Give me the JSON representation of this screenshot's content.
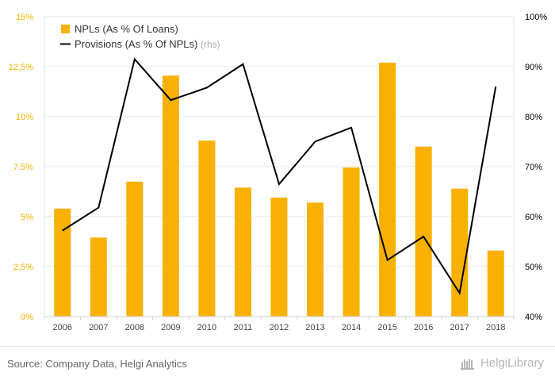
{
  "chart_data": {
    "type": "bar",
    "categories": [
      "2006",
      "2007",
      "2008",
      "2009",
      "2010",
      "2011",
      "2012",
      "2013",
      "2014",
      "2015",
      "2016",
      "2017",
      "2018"
    ],
    "series": [
      {
        "name": "NPLs (As % Of Loans)",
        "type": "bar",
        "axis": "left",
        "color": "#f8b100",
        "values": [
          5.4,
          3.95,
          6.75,
          12.05,
          8.8,
          6.45,
          5.95,
          5.7,
          7.45,
          12.7,
          8.5,
          6.4,
          3.3
        ]
      },
      {
        "name": "Provisions (As % Of NPLs)",
        "type": "line",
        "axis": "right",
        "color": "#000000",
        "values": [
          57.2,
          61.8,
          91.5,
          83.3,
          85.8,
          90.5,
          66.5,
          75.0,
          77.8,
          51.3,
          56.0,
          44.7,
          86.0
        ]
      }
    ],
    "y_left": {
      "min": 0,
      "max": 15,
      "ticks": [
        "0%",
        "2.5%",
        "5%",
        "7.5%",
        "10%",
        "12.5%",
        "15%"
      ]
    },
    "y_right": {
      "min": 40,
      "max": 100,
      "ticks": [
        "40%",
        "50%",
        "60%",
        "70%",
        "80%",
        "90%",
        "100%"
      ]
    },
    "legend": {
      "placement": "top-left",
      "entries": [
        {
          "label": "NPLs (As % Of Loans)",
          "suffix": ""
        },
        {
          "label": "Provisions (As % Of NPLs)",
          "suffix": "(rhs)"
        }
      ]
    },
    "grid": true
  },
  "footer": {
    "source": "Source: Company Data, Helgi Analytics",
    "brand": "HelgiLibrary"
  }
}
